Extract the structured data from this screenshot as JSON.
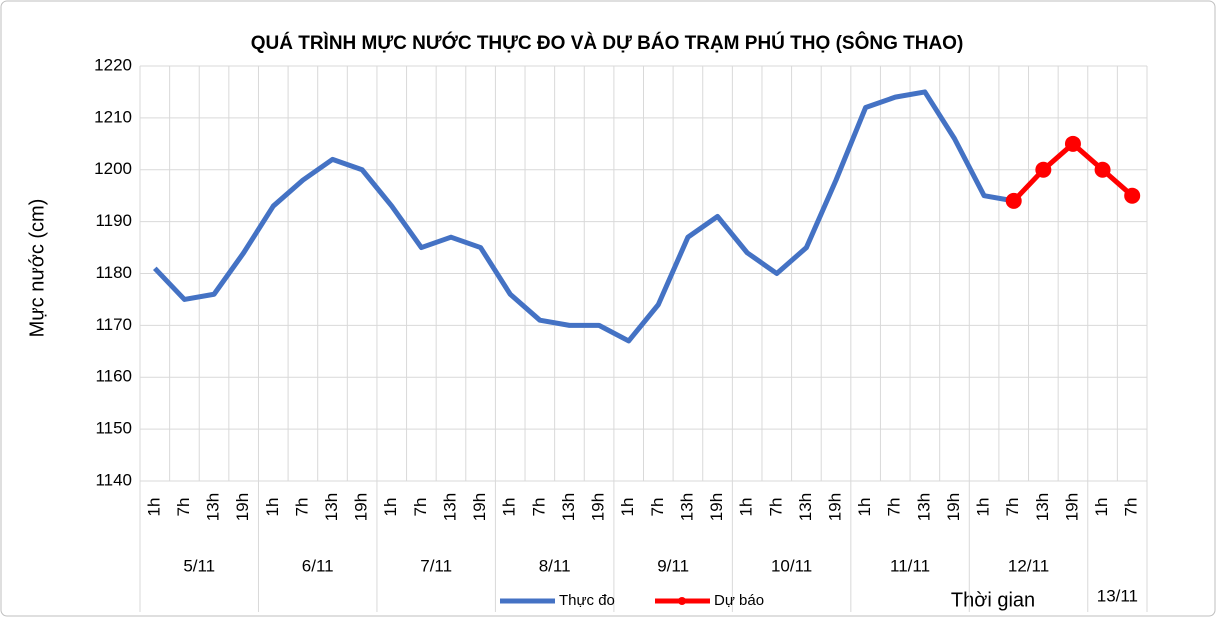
{
  "chart_data": {
    "type": "line",
    "title": "QUÁ TRÌNH MỰC NƯỚC THỰC ĐO VÀ DỰ BÁO TRẠM PHÚ THỌ (SÔNG THAO)",
    "y_label": "Mực nước (cm)",
    "x_label": "Thời gian",
    "day_groups": [
      {
        "label": "5/11",
        "hours": [
          "1h",
          "7h",
          "13h",
          "19h"
        ]
      },
      {
        "label": "6/11",
        "hours": [
          "1h",
          "7h",
          "13h",
          "19h"
        ]
      },
      {
        "label": "7/11",
        "hours": [
          "1h",
          "7h",
          "13h",
          "19h"
        ]
      },
      {
        "label": "8/11",
        "hours": [
          "1h",
          "7h",
          "13h",
          "19h"
        ]
      },
      {
        "label": "9/11",
        "hours": [
          "1h",
          "7h",
          "13h",
          "19h"
        ]
      },
      {
        "label": "10/11",
        "hours": [
          "1h",
          "7h",
          "13h",
          "19h"
        ]
      },
      {
        "label": "11/11",
        "hours": [
          "1h",
          "7h",
          "13h",
          "19h"
        ]
      },
      {
        "label": "12/11",
        "hours": [
          "1h",
          "7h",
          "13h",
          "19h"
        ]
      },
      {
        "label": "13/11",
        "hours": [
          "1h",
          "7h"
        ]
      }
    ],
    "series": [
      {
        "name": "Thực đo",
        "color": "#4472c4",
        "markers": false,
        "values": [
          1181,
          1175,
          1176,
          1184,
          1193,
          1198,
          1202,
          1200,
          1193,
          1185,
          1187,
          1185,
          1176,
          1171,
          1170,
          1170,
          1167,
          1174,
          1187,
          1191,
          1184,
          1180,
          1185,
          1198,
          1212,
          1214,
          1215,
          1206,
          1195,
          1194,
          null,
          null,
          null,
          null
        ]
      },
      {
        "name": "Dự báo",
        "color": "#ff0000",
        "markers": true,
        "values": [
          null,
          null,
          null,
          null,
          null,
          null,
          null,
          null,
          null,
          null,
          null,
          null,
          null,
          null,
          null,
          null,
          null,
          null,
          null,
          null,
          null,
          null,
          null,
          null,
          null,
          null,
          null,
          null,
          null,
          1194,
          1200,
          1205,
          1200,
          1195
        ]
      }
    ],
    "ylim": [
      1140,
      1220
    ],
    "yticks": [
      1140,
      1150,
      1160,
      1170,
      1180,
      1190,
      1200,
      1210,
      1220
    ],
    "grid": true
  }
}
